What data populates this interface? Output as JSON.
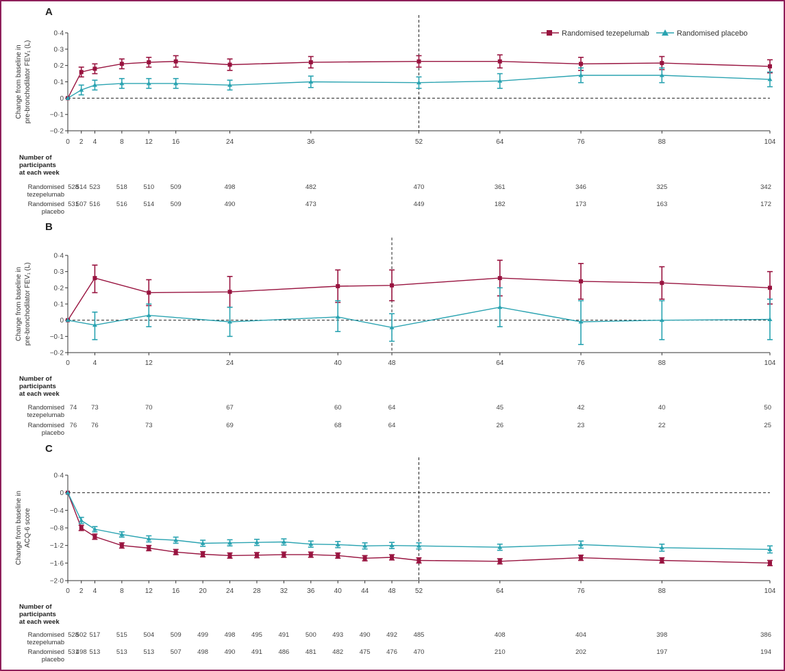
{
  "colors": {
    "tezepelumab": "#98133f",
    "placebo": "#2aa3b1",
    "axis": "#333333",
    "border": "#8e1f5a"
  },
  "legend": {
    "tezepelumab": "Randomised tezepelumab",
    "placebo": "Randomised placebo"
  },
  "participants": {
    "header": [
      "Number of",
      "participants",
      "at each week"
    ],
    "row1_label": [
      "Randomised",
      "tezepelumab"
    ],
    "row2_label": [
      "Randomised",
      "placebo"
    ]
  },
  "chart_data": [
    {
      "panel": "A",
      "type": "line",
      "ylabel": [
        "Change from baseline in",
        "pre-bronchodilator FEV₁ (L)"
      ],
      "ylim": [
        -0.2,
        0.4
      ],
      "yticks": [
        {
          "v": 0.4,
          "label": "0·4"
        },
        {
          "v": 0.3,
          "label": "0·3"
        },
        {
          "v": 0.2,
          "label": "0·2"
        },
        {
          "v": 0.1,
          "label": "0·1"
        },
        {
          "v": 0,
          "label": "0"
        },
        {
          "v": -0.1,
          "label": "−0·1"
        },
        {
          "v": -0.2,
          "label": "−0·2"
        }
      ],
      "xticks": [
        0,
        2,
        4,
        8,
        12,
        16,
        24,
        36,
        52,
        64,
        76,
        88,
        104
      ],
      "series": [
        {
          "key": "tezepelumab",
          "name": "Randomised tezepelumab",
          "points": [
            {
              "x": 0,
              "y": 0,
              "lo": 0,
              "hi": 0
            },
            {
              "x": 2,
              "y": 0.16,
              "lo": 0.13,
              "hi": 0.19
            },
            {
              "x": 4,
              "y": 0.18,
              "lo": 0.15,
              "hi": 0.21
            },
            {
              "x": 8,
              "y": 0.21,
              "lo": 0.18,
              "hi": 0.24
            },
            {
              "x": 12,
              "y": 0.22,
              "lo": 0.19,
              "hi": 0.25
            },
            {
              "x": 16,
              "y": 0.225,
              "lo": 0.19,
              "hi": 0.26
            },
            {
              "x": 24,
              "y": 0.205,
              "lo": 0.17,
              "hi": 0.24
            },
            {
              "x": 36,
              "y": 0.22,
              "lo": 0.185,
              "hi": 0.255
            },
            {
              "x": 52,
              "y": 0.225,
              "lo": 0.19,
              "hi": 0.26
            },
            {
              "x": 64,
              "y": 0.225,
              "lo": 0.185,
              "hi": 0.265
            },
            {
              "x": 76,
              "y": 0.21,
              "lo": 0.17,
              "hi": 0.25
            },
            {
              "x": 88,
              "y": 0.215,
              "lo": 0.175,
              "hi": 0.255
            },
            {
              "x": 104,
              "y": 0.195,
              "lo": 0.155,
              "hi": 0.235
            }
          ]
        },
        {
          "key": "placebo",
          "name": "Randomised placebo",
          "points": [
            {
              "x": 0,
              "y": 0,
              "lo": 0,
              "hi": 0
            },
            {
              "x": 2,
              "y": 0.05,
              "lo": 0.02,
              "hi": 0.08
            },
            {
              "x": 4,
              "y": 0.08,
              "lo": 0.05,
              "hi": 0.11
            },
            {
              "x": 8,
              "y": 0.09,
              "lo": 0.06,
              "hi": 0.12
            },
            {
              "x": 12,
              "y": 0.09,
              "lo": 0.06,
              "hi": 0.12
            },
            {
              "x": 16,
              "y": 0.09,
              "lo": 0.06,
              "hi": 0.12
            },
            {
              "x": 24,
              "y": 0.08,
              "lo": 0.05,
              "hi": 0.11
            },
            {
              "x": 36,
              "y": 0.1,
              "lo": 0.065,
              "hi": 0.135
            },
            {
              "x": 52,
              "y": 0.095,
              "lo": 0.06,
              "hi": 0.13
            },
            {
              "x": 64,
              "y": 0.105,
              "lo": 0.06,
              "hi": 0.15
            },
            {
              "x": 76,
              "y": 0.14,
              "lo": 0.095,
              "hi": 0.185
            },
            {
              "x": 88,
              "y": 0.14,
              "lo": 0.095,
              "hi": 0.185
            },
            {
              "x": 104,
              "y": 0.115,
              "lo": 0.07,
              "hi": 0.16
            }
          ]
        }
      ],
      "vline_x": 52,
      "counts_weeks": [
        0,
        2,
        4,
        8,
        12,
        16,
        24,
        36,
        52,
        64,
        76,
        88,
        104
      ],
      "counts_tezepelumab": [
        "528",
        "514",
        "523",
        "518",
        "510",
        "509",
        "498",
        "482",
        "470",
        "361",
        "346",
        "325",
        "342"
      ],
      "counts_placebo": [
        "531",
        "507",
        "516",
        "516",
        "514",
        "509",
        "490",
        "473",
        "449",
        "182",
        "173",
        "163",
        "172"
      ]
    },
    {
      "panel": "B",
      "type": "line",
      "ylabel": [
        "Change from baseline in",
        "pre-bronchodilator FEV₁ (L)"
      ],
      "ylim": [
        -0.2,
        0.4
      ],
      "yticks": [
        {
          "v": 0.4,
          "label": "0·4"
        },
        {
          "v": 0.3,
          "label": "0·3"
        },
        {
          "v": 0.2,
          "label": "0·2"
        },
        {
          "v": 0.1,
          "label": "0·1"
        },
        {
          "v": 0,
          "label": "0"
        },
        {
          "v": -0.1,
          "label": "−0·1"
        },
        {
          "v": -0.2,
          "label": "−0·2"
        }
      ],
      "xticks": [
        0,
        4,
        12,
        24,
        40,
        48,
        64,
        76,
        88,
        104
      ],
      "series": [
        {
          "key": "tezepelumab",
          "name": "Randomised tezepelumab",
          "points": [
            {
              "x": 0,
              "y": 0,
              "lo": 0,
              "hi": 0
            },
            {
              "x": 4,
              "y": 0.26,
              "lo": 0.17,
              "hi": 0.34
            },
            {
              "x": 12,
              "y": 0.17,
              "lo": 0.09,
              "hi": 0.25
            },
            {
              "x": 24,
              "y": 0.175,
              "lo": 0.08,
              "hi": 0.27
            },
            {
              "x": 40,
              "y": 0.21,
              "lo": 0.11,
              "hi": 0.31
            },
            {
              "x": 48,
              "y": 0.215,
              "lo": 0.12,
              "hi": 0.31
            },
            {
              "x": 64,
              "y": 0.26,
              "lo": 0.15,
              "hi": 0.37
            },
            {
              "x": 76,
              "y": 0.24,
              "lo": 0.13,
              "hi": 0.35
            },
            {
              "x": 88,
              "y": 0.23,
              "lo": 0.13,
              "hi": 0.33
            },
            {
              "x": 104,
              "y": 0.2,
              "lo": 0.1,
              "hi": 0.3
            }
          ]
        },
        {
          "key": "placebo",
          "name": "Randomised placebo",
          "points": [
            {
              "x": 0,
              "y": 0,
              "lo": 0,
              "hi": 0
            },
            {
              "x": 4,
              "y": -0.03,
              "lo": -0.12,
              "hi": 0.05
            },
            {
              "x": 12,
              "y": 0.03,
              "lo": -0.04,
              "hi": 0.1
            },
            {
              "x": 24,
              "y": -0.01,
              "lo": -0.1,
              "hi": 0.08
            },
            {
              "x": 40,
              "y": 0.02,
              "lo": -0.07,
              "hi": 0.12
            },
            {
              "x": 48,
              "y": -0.045,
              "lo": -0.13,
              "hi": 0.04
            },
            {
              "x": 64,
              "y": 0.08,
              "lo": -0.04,
              "hi": 0.2
            },
            {
              "x": 76,
              "y": -0.01,
              "lo": -0.15,
              "hi": 0.12
            },
            {
              "x": 88,
              "y": 0,
              "lo": -0.12,
              "hi": 0.12
            },
            {
              "x": 104,
              "y": 0.005,
              "lo": -0.12,
              "hi": 0.13
            }
          ]
        }
      ],
      "vline_x": 48,
      "counts_weeks": [
        0,
        4,
        12,
        24,
        40,
        48,
        64,
        76,
        88,
        104
      ],
      "counts_tezepelumab": [
        "74",
        "73",
        "70",
        "67",
        "60",
        "64",
        "45",
        "42",
        "40",
        "50"
      ],
      "counts_placebo": [
        "76",
        "76",
        "73",
        "69",
        "68",
        "64",
        "26",
        "23",
        "22",
        "25"
      ]
    },
    {
      "panel": "C",
      "type": "line",
      "ylabel": [
        "Change from baseline in",
        "ACQ-6 score"
      ],
      "ylim": [
        -2.0,
        0.4
      ],
      "yticks": [
        {
          "v": 0.4,
          "label": "0·4"
        },
        {
          "v": 0,
          "label": "0"
        },
        {
          "v": -0.4,
          "label": "−0·4"
        },
        {
          "v": -0.8,
          "label": "−0·8"
        },
        {
          "v": -1.2,
          "label": "−1·2"
        },
        {
          "v": -1.6,
          "label": "−1·6"
        },
        {
          "v": -2.0,
          "label": "−2·0"
        }
      ],
      "xticks": [
        0,
        2,
        4,
        8,
        12,
        16,
        20,
        24,
        28,
        32,
        36,
        40,
        44,
        48,
        52,
        64,
        76,
        88,
        104
      ],
      "series": [
        {
          "key": "tezepelumab",
          "name": "Randomised tezepelumab",
          "points": [
            {
              "x": 0,
              "y": 0,
              "lo": 0,
              "hi": 0
            },
            {
              "x": 2,
              "y": -0.8,
              "lo": -0.86,
              "hi": -0.74
            },
            {
              "x": 4,
              "y": -1.0,
              "lo": -1.06,
              "hi": -0.94
            },
            {
              "x": 8,
              "y": -1.2,
              "lo": -1.26,
              "hi": -1.14
            },
            {
              "x": 12,
              "y": -1.26,
              "lo": -1.32,
              "hi": -1.2
            },
            {
              "x": 16,
              "y": -1.35,
              "lo": -1.41,
              "hi": -1.29
            },
            {
              "x": 20,
              "y": -1.4,
              "lo": -1.46,
              "hi": -1.34
            },
            {
              "x": 24,
              "y": -1.43,
              "lo": -1.49,
              "hi": -1.37
            },
            {
              "x": 28,
              "y": -1.42,
              "lo": -1.48,
              "hi": -1.36
            },
            {
              "x": 32,
              "y": -1.41,
              "lo": -1.47,
              "hi": -1.35
            },
            {
              "x": 36,
              "y": -1.41,
              "lo": -1.47,
              "hi": -1.35
            },
            {
              "x": 40,
              "y": -1.43,
              "lo": -1.49,
              "hi": -1.37
            },
            {
              "x": 44,
              "y": -1.49,
              "lo": -1.55,
              "hi": -1.43
            },
            {
              "x": 48,
              "y": -1.47,
              "lo": -1.53,
              "hi": -1.41
            },
            {
              "x": 52,
              "y": -1.54,
              "lo": -1.6,
              "hi": -1.48
            },
            {
              "x": 64,
              "y": -1.56,
              "lo": -1.62,
              "hi": -1.5
            },
            {
              "x": 76,
              "y": -1.48,
              "lo": -1.54,
              "hi": -1.42
            },
            {
              "x": 88,
              "y": -1.54,
              "lo": -1.6,
              "hi": -1.48
            },
            {
              "x": 104,
              "y": -1.6,
              "lo": -1.66,
              "hi": -1.54
            }
          ]
        },
        {
          "key": "placebo",
          "name": "Randomised placebo",
          "points": [
            {
              "x": 0,
              "y": 0,
              "lo": 0,
              "hi": 0
            },
            {
              "x": 2,
              "y": -0.63,
              "lo": -0.7,
              "hi": -0.56
            },
            {
              "x": 4,
              "y": -0.83,
              "lo": -0.89,
              "hi": -0.77
            },
            {
              "x": 8,
              "y": -0.95,
              "lo": -1.01,
              "hi": -0.89
            },
            {
              "x": 12,
              "y": -1.05,
              "lo": -1.12,
              "hi": -0.98
            },
            {
              "x": 16,
              "y": -1.08,
              "lo": -1.15,
              "hi": -1.01
            },
            {
              "x": 20,
              "y": -1.15,
              "lo": -1.22,
              "hi": -1.08
            },
            {
              "x": 24,
              "y": -1.14,
              "lo": -1.21,
              "hi": -1.07
            },
            {
              "x": 28,
              "y": -1.13,
              "lo": -1.2,
              "hi": -1.06
            },
            {
              "x": 32,
              "y": -1.12,
              "lo": -1.19,
              "hi": -1.05
            },
            {
              "x": 36,
              "y": -1.17,
              "lo": -1.24,
              "hi": -1.1
            },
            {
              "x": 40,
              "y": -1.18,
              "lo": -1.25,
              "hi": -1.11
            },
            {
              "x": 44,
              "y": -1.21,
              "lo": -1.28,
              "hi": -1.14
            },
            {
              "x": 48,
              "y": -1.2,
              "lo": -1.27,
              "hi": -1.13
            },
            {
              "x": 52,
              "y": -1.21,
              "lo": -1.28,
              "hi": -1.14
            },
            {
              "x": 64,
              "y": -1.24,
              "lo": -1.31,
              "hi": -1.17
            },
            {
              "x": 76,
              "y": -1.18,
              "lo": -1.26,
              "hi": -1.1
            },
            {
              "x": 88,
              "y": -1.25,
              "lo": -1.33,
              "hi": -1.17
            },
            {
              "x": 104,
              "y": -1.29,
              "lo": -1.37,
              "hi": -1.21
            }
          ]
        }
      ],
      "vline_x": 52,
      "counts_weeks": [
        0,
        2,
        4,
        8,
        12,
        16,
        20,
        24,
        28,
        32,
        36,
        40,
        44,
        48,
        52,
        64,
        76,
        88,
        104
      ],
      "counts_tezepelumab": [
        "528",
        "502",
        "517",
        "515",
        "504",
        "509",
        "499",
        "498",
        "495",
        "491",
        "500",
        "493",
        "490",
        "492",
        "485",
        "408",
        "404",
        "398",
        "386"
      ],
      "counts_placebo": [
        "531",
        "498",
        "513",
        "513",
        "513",
        "507",
        "498",
        "490",
        "491",
        "486",
        "481",
        "482",
        "475",
        "476",
        "470",
        "210",
        "202",
        "197",
        "194"
      ]
    }
  ]
}
